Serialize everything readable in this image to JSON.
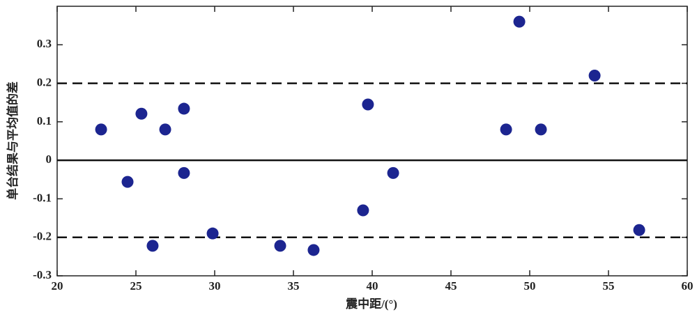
{
  "chart_data": {
    "type": "scatter",
    "x_label": "震中距/(°)",
    "y_label": "单台结果与平均值的差",
    "xlim": [
      20,
      60
    ],
    "xticks": [
      20,
      25,
      30,
      35,
      40,
      45,
      50,
      55,
      60
    ],
    "ylim": [
      -0.3,
      0.4
    ],
    "yticks": [
      -0.3,
      -0.2,
      -0.1,
      0,
      0.1,
      0.2,
      0.3
    ],
    "color": "#1c2590",
    "hlines": [
      {
        "value": 0.2,
        "style": "dashed"
      },
      {
        "value": 0,
        "style": "solid"
      },
      {
        "value": -0.2,
        "style": "dashed"
      }
    ],
    "x": [
      22.79,
      24.47,
      25.35,
      26.06,
      26.86,
      28.05,
      28.05,
      29.87,
      34.16,
      36.28,
      39.42,
      39.73,
      41.33,
      48.5,
      49.34,
      50.71,
      54.12,
      56.95
    ],
    "values": [
      0.08,
      -0.056,
      0.121,
      -0.222,
      0.08,
      0.134,
      -0.033,
      -0.19,
      -0.222,
      -0.233,
      -0.13,
      0.145,
      -0.033,
      0.08,
      0.36,
      0.08,
      0.22,
      -0.181
    ]
  }
}
